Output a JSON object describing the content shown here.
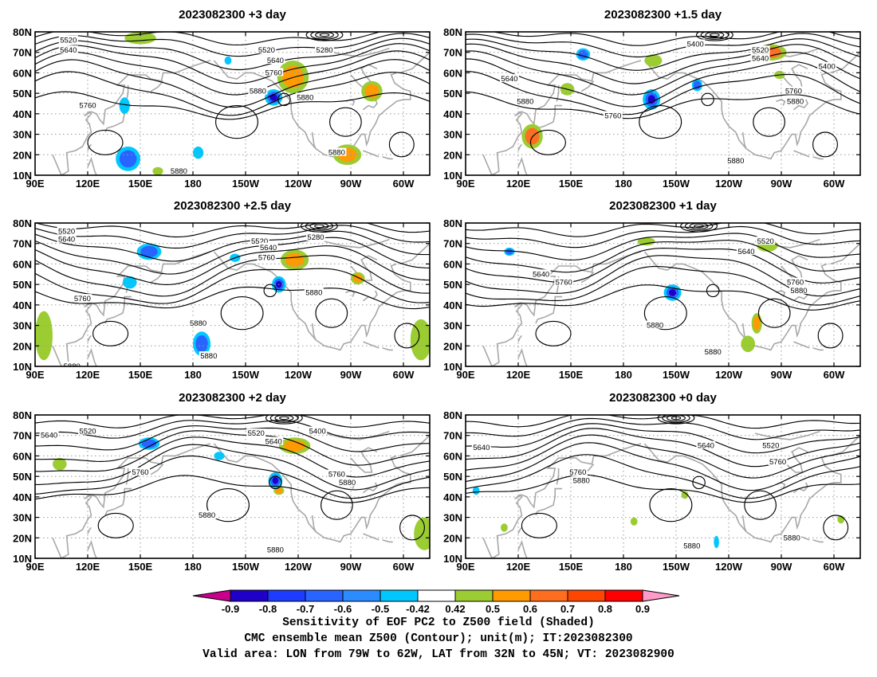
{
  "chart_data": [
    {
      "type": "heatmap",
      "title": "2023082300 +3 day",
      "x_ticks": [
        "90E",
        "120E",
        "150E",
        "180",
        "150W",
        "120W",
        "90W",
        "60W"
      ],
      "y_ticks": [
        "10N",
        "20N",
        "30N",
        "40N",
        "50N",
        "60N",
        "70N",
        "80N"
      ],
      "xlim": [
        "90E",
        "45W"
      ],
      "ylim": [
        "10N",
        "80N"
      ],
      "contour_labels": [
        {
          "text": "5520",
          "lon": 109,
          "lat": 76
        },
        {
          "text": "5640",
          "lon": 109,
          "lat": 71
        },
        {
          "text": "5520",
          "lon": 222,
          "lat": 71
        },
        {
          "text": "5280",
          "lon": 255,
          "lat": 71
        },
        {
          "text": "5640",
          "lon": 227,
          "lat": 66
        },
        {
          "text": "5760",
          "lon": 226,
          "lat": 60
        },
        {
          "text": "5880",
          "lon": 217,
          "lat": 51
        },
        {
          "text": "5880",
          "lon": 244,
          "lat": 48
        },
        {
          "text": "5760",
          "lon": 120,
          "lat": 44
        },
        {
          "text": "5880",
          "lon": 262,
          "lat": 21
        },
        {
          "text": "5880",
          "lon": 172,
          "lat": 12
        }
      ],
      "positive_regions": [
        {
          "lon": 237,
          "lat": 58,
          "rx": 9,
          "ry": 8,
          "level": 0.6
        },
        {
          "lon": 282,
          "lat": 51,
          "rx": 6,
          "ry": 5,
          "level": 0.6
        },
        {
          "lon": 150,
          "lat": 77,
          "rx": 9,
          "ry": 3,
          "level": 0.5
        },
        {
          "lon": 268,
          "lat": 20,
          "rx": 8,
          "ry": 5,
          "level": 0.6
        },
        {
          "lon": 160,
          "lat": 12,
          "rx": 3,
          "ry": 2,
          "level": 0.5
        }
      ],
      "negative_regions": [
        {
          "lon": 226,
          "lat": 48,
          "rx": 5,
          "ry": 4,
          "level": -0.8
        },
        {
          "lon": 143,
          "lat": 18,
          "rx": 7,
          "ry": 6,
          "level": -0.6
        },
        {
          "lon": 183,
          "lat": 21,
          "rx": 3,
          "ry": 3,
          "level": -0.5
        },
        {
          "lon": 141,
          "lat": 44,
          "rx": 3,
          "ry": 4,
          "level": -0.5
        },
        {
          "lon": 200,
          "lat": 66,
          "rx": 2,
          "ry": 2,
          "level": -0.5
        }
      ]
    },
    {
      "type": "heatmap",
      "title": "2023082300 +1.5 day",
      "x_ticks": [
        "90E",
        "120E",
        "150E",
        "180",
        "150W",
        "120W",
        "90W",
        "60W"
      ],
      "y_ticks": [
        "10N",
        "20N",
        "30N",
        "40N",
        "50N",
        "60N",
        "70N",
        "80N"
      ],
      "xlim": [
        "90E",
        "45W"
      ],
      "ylim": [
        "10N",
        "80N"
      ],
      "contour_labels": [
        {
          "text": "5400",
          "lon": 221,
          "lat": 74
        },
        {
          "text": "5520",
          "lon": 258,
          "lat": 71
        },
        {
          "text": "5640",
          "lon": 258,
          "lat": 67
        },
        {
          "text": "5400",
          "lon": 296,
          "lat": 63
        },
        {
          "text": "5640",
          "lon": 115,
          "lat": 57
        },
        {
          "text": "5760",
          "lon": 277,
          "lat": 51
        },
        {
          "text": "5880",
          "lon": 124,
          "lat": 46
        },
        {
          "text": "5880",
          "lon": 278,
          "lat": 46
        },
        {
          "text": "5760",
          "lon": 174,
          "lat": 39
        },
        {
          "text": "5880",
          "lon": 244,
          "lat": 17
        }
      ],
      "positive_regions": [
        {
          "lon": 128,
          "lat": 29,
          "rx": 6,
          "ry": 6,
          "level": 0.7
        },
        {
          "lon": 264,
          "lat": 70,
          "rx": 9,
          "ry": 4,
          "level": 0.7
        },
        {
          "lon": 197,
          "lat": 66,
          "rx": 5,
          "ry": 3,
          "level": 0.5
        },
        {
          "lon": 148,
          "lat": 52,
          "rx": 4,
          "ry": 3,
          "level": 0.5
        },
        {
          "lon": 269,
          "lat": 59,
          "rx": 3,
          "ry": 2,
          "level": 0.5
        }
      ],
      "negative_regions": [
        {
          "lon": 196,
          "lat": 47,
          "rx": 5,
          "ry": 5,
          "level": -0.8
        },
        {
          "lon": 157,
          "lat": 69,
          "rx": 4,
          "ry": 3,
          "level": -0.6
        },
        {
          "lon": 222,
          "lat": 54,
          "rx": 3,
          "ry": 3,
          "level": -0.6
        }
      ]
    },
    {
      "type": "heatmap",
      "title": "2023082300 +2.5 day",
      "x_ticks": [
        "90E",
        "120E",
        "150E",
        "180",
        "150W",
        "120W",
        "90W",
        "60W"
      ],
      "y_ticks": [
        "10N",
        "20N",
        "30N",
        "40N",
        "50N",
        "60N",
        "70N",
        "80N"
      ],
      "xlim": [
        "90E",
        "45W"
      ],
      "ylim": [
        "10N",
        "80N"
      ],
      "contour_labels": [
        {
          "text": "5520",
          "lon": 108,
          "lat": 76
        },
        {
          "text": "5640",
          "lon": 108,
          "lat": 72
        },
        {
          "text": "5520",
          "lon": 218,
          "lat": 71
        },
        {
          "text": "5280",
          "lon": 250,
          "lat": 73
        },
        {
          "text": "5640",
          "lon": 223,
          "lat": 68
        },
        {
          "text": "5760",
          "lon": 222,
          "lat": 63
        },
        {
          "text": "5880",
          "lon": 249,
          "lat": 46
        },
        {
          "text": "5760",
          "lon": 117,
          "lat": 43
        },
        {
          "text": "5880",
          "lon": 183,
          "lat": 31
        },
        {
          "text": "5880",
          "lon": 189,
          "lat": 15
        },
        {
          "text": "5880",
          "lon": 111,
          "lat": 10
        }
      ],
      "positive_regions": [
        {
          "lon": 238,
          "lat": 62,
          "rx": 8,
          "ry": 5,
          "level": 0.6
        },
        {
          "lon": 274,
          "lat": 53,
          "rx": 4,
          "ry": 3,
          "level": 0.6
        },
        {
          "lon": 95,
          "lat": 25,
          "rx": 5,
          "ry": 12,
          "level": 0.5
        },
        {
          "lon": 310,
          "lat": 23,
          "rx": 6,
          "ry": 10,
          "level": 0.5
        }
      ],
      "negative_regions": [
        {
          "lon": 229,
          "lat": 50,
          "rx": 4,
          "ry": 4,
          "level": -0.8
        },
        {
          "lon": 185,
          "lat": 21,
          "rx": 5,
          "ry": 6,
          "level": -0.6
        },
        {
          "lon": 155,
          "lat": 66,
          "rx": 7,
          "ry": 4,
          "level": -0.6
        },
        {
          "lon": 144,
          "lat": 51,
          "rx": 4,
          "ry": 3,
          "level": -0.5
        },
        {
          "lon": 204,
          "lat": 63,
          "rx": 3,
          "ry": 2,
          "level": -0.5
        }
      ]
    },
    {
      "type": "heatmap",
      "title": "2023082300 +1 day",
      "x_ticks": [
        "90E",
        "120E",
        "150E",
        "180",
        "150W",
        "120W",
        "90W",
        "60W"
      ],
      "y_ticks": [
        "10N",
        "20N",
        "30N",
        "40N",
        "50N",
        "60N",
        "70N",
        "80N"
      ],
      "xlim": [
        "90E",
        "45W"
      ],
      "ylim": [
        "10N",
        "80N"
      ],
      "contour_labels": [
        {
          "text": "5520",
          "lon": 261,
          "lat": 71
        },
        {
          "text": "5640",
          "lon": 250,
          "lat": 66
        },
        {
          "text": "5640",
          "lon": 133,
          "lat": 55
        },
        {
          "text": "5760",
          "lon": 146,
          "lat": 51
        },
        {
          "text": "5760",
          "lon": 278,
          "lat": 51
        },
        {
          "text": "5880",
          "lon": 280,
          "lat": 47
        },
        {
          "text": "5880",
          "lon": 198,
          "lat": 30
        },
        {
          "text": "5880",
          "lon": 231,
          "lat": 17
        }
      ],
      "positive_regions": [
        {
          "lon": 256,
          "lat": 31,
          "rx": 3,
          "ry": 5,
          "level": 0.6
        },
        {
          "lon": 193,
          "lat": 71,
          "rx": 5,
          "ry": 2,
          "level": 0.5
        },
        {
          "lon": 262,
          "lat": 69,
          "rx": 6,
          "ry": 3,
          "level": 0.5
        },
        {
          "lon": 251,
          "lat": 21,
          "rx": 4,
          "ry": 4,
          "level": 0.5
        }
      ],
      "negative_regions": [
        {
          "lon": 208,
          "lat": 46,
          "rx": 5,
          "ry": 4,
          "level": -0.8
        },
        {
          "lon": 115,
          "lat": 66,
          "rx": 3,
          "ry": 2,
          "level": -0.6
        }
      ]
    },
    {
      "type": "heatmap",
      "title": "2023082300 +2 day",
      "x_ticks": [
        "90E",
        "120E",
        "150E",
        "180",
        "150W",
        "120W",
        "90W",
        "60W"
      ],
      "y_ticks": [
        "10N",
        "20N",
        "30N",
        "40N",
        "50N",
        "60N",
        "70N",
        "80N"
      ],
      "xlim": [
        "90E",
        "45W"
      ],
      "ylim": [
        "10N",
        "80N"
      ],
      "contour_labels": [
        {
          "text": "5640",
          "lon": 98,
          "lat": 70
        },
        {
          "text": "5520",
          "lon": 120,
          "lat": 72
        },
        {
          "text": "5520",
          "lon": 216,
          "lat": 71
        },
        {
          "text": "5400",
          "lon": 251,
          "lat": 72
        },
        {
          "text": "5640",
          "lon": 226,
          "lat": 67
        },
        {
          "text": "5760",
          "lon": 150,
          "lat": 52
        },
        {
          "text": "5760",
          "lon": 262,
          "lat": 51
        },
        {
          "text": "5880",
          "lon": 268,
          "lat": 47
        },
        {
          "text": "5880",
          "lon": 188,
          "lat": 31
        },
        {
          "text": "5880",
          "lon": 227,
          "lat": 14
        }
      ],
      "positive_regions": [
        {
          "lon": 238,
          "lat": 65,
          "rx": 9,
          "ry": 4,
          "level": 0.6
        },
        {
          "lon": 312,
          "lat": 22,
          "rx": 6,
          "ry": 8,
          "level": 0.5
        },
        {
          "lon": 104,
          "lat": 56,
          "rx": 4,
          "ry": 3,
          "level": 0.5
        },
        {
          "lon": 229,
          "lat": 43,
          "rx": 3,
          "ry": 2,
          "level": 0.6
        }
      ],
      "negative_regions": [
        {
          "lon": 227,
          "lat": 48,
          "rx": 4,
          "ry": 4,
          "level": -0.8
        },
        {
          "lon": 155,
          "lat": 66,
          "rx": 6,
          "ry": 3,
          "level": -0.7
        },
        {
          "lon": 195,
          "lat": 60,
          "rx": 3,
          "ry": 2,
          "level": -0.5
        }
      ]
    },
    {
      "type": "heatmap",
      "title": "2023082300 +0 day",
      "x_ticks": [
        "90E",
        "120E",
        "150E",
        "180",
        "150W",
        "120W",
        "90W",
        "60W"
      ],
      "y_ticks": [
        "10N",
        "20N",
        "30N",
        "40N",
        "50N",
        "60N",
        "70N",
        "80N"
      ],
      "xlim": [
        "90E",
        "45W"
      ],
      "ylim": [
        "10N",
        "80N"
      ],
      "contour_labels": [
        {
          "text": "5640",
          "lon": 99,
          "lat": 64
        },
        {
          "text": "5640",
          "lon": 227,
          "lat": 65
        },
        {
          "text": "5520",
          "lon": 264,
          "lat": 65
        },
        {
          "text": "5760",
          "lon": 268,
          "lat": 57
        },
        {
          "text": "5760",
          "lon": 154,
          "lat": 52
        },
        {
          "text": "5880",
          "lon": 156,
          "lat": 48
        },
        {
          "text": "5880",
          "lon": 219,
          "lat": 16
        },
        {
          "text": "5880",
          "lon": 276,
          "lat": 20
        }
      ],
      "positive_regions": [
        {
          "lon": 112,
          "lat": 25,
          "rx": 2,
          "ry": 2,
          "level": 0.5
        },
        {
          "lon": 215,
          "lat": 41,
          "rx": 2,
          "ry": 2,
          "level": 0.5
        },
        {
          "lon": 304,
          "lat": 29,
          "rx": 2,
          "ry": 2,
          "level": 0.5
        },
        {
          "lon": 186,
          "lat": 28,
          "rx": 2,
          "ry": 2,
          "level": 0.5
        }
      ],
      "negative_regions": [
        {
          "lon": 96,
          "lat": 43,
          "rx": 2,
          "ry": 2,
          "level": -0.5
        },
        {
          "lon": 233,
          "lat": 18,
          "rx": 1.5,
          "ry": 3,
          "level": -0.5
        }
      ]
    }
  ],
  "colorbar": {
    "ticks": [
      "-0.9",
      "-0.8",
      "-0.7",
      "-0.6",
      "-0.5",
      "-0.42",
      "0.42",
      "0.5",
      "0.6",
      "0.7",
      "0.8",
      "0.9"
    ],
    "colors": [
      "#1e00c8",
      "#1e3cff",
      "#2864ff",
      "#2a8cff",
      "#00c8ff",
      "#ffffff",
      "#9bcd32",
      "#ff9b00",
      "#ff6e1e",
      "#ff4600",
      "#ff0000"
    ],
    "low_color": "#c8008c",
    "high_color": "#ff9bc8"
  },
  "footer": {
    "line1": "Sensitivity of EOF PC2 to Z500 field (Shaded)",
    "line2": "CMC ensemble mean Z500 (Contour); unit(m); IT:2023082300",
    "line3": "Valid area: LON from 79W to 62W, LAT from 32N to 45N; VT: 2023082900"
  }
}
